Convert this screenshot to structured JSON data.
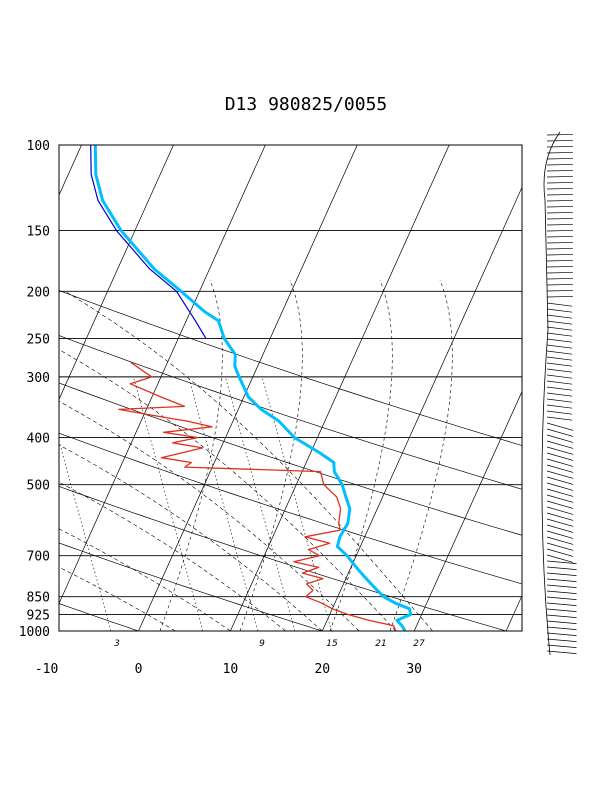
{
  "chart_data": {
    "type": "line",
    "title": "D13 980825/0055",
    "pressure_ticks": [
      100,
      150,
      200,
      250,
      300,
      400,
      500,
      700,
      850,
      925,
      1000
    ],
    "temperature_ticks": [
      -10,
      0,
      10,
      20,
      30
    ],
    "mixing_ratio_labels": [
      3,
      9,
      15,
      21,
      27
    ],
    "xlim": [
      -10,
      40
    ],
    "ylim": [
      1000,
      100
    ],
    "log_pressure": true,
    "series": [
      {
        "color": "#00bfff",
        "points": [
          [
            1000,
            29.0
          ],
          [
            975,
            28.4
          ],
          [
            950,
            27.6
          ],
          [
            925,
            28.8
          ],
          [
            900,
            28.4
          ],
          [
            875,
            26.5
          ],
          [
            850,
            25.0
          ],
          [
            825,
            24.0
          ],
          [
            800,
            23.0
          ],
          [
            775,
            22.0
          ],
          [
            750,
            21.0
          ],
          [
            725,
            20.0
          ],
          [
            700,
            19.0
          ],
          [
            670,
            17.5
          ],
          [
            640,
            17.3
          ],
          [
            600,
            17.5
          ],
          [
            560,
            17.0
          ],
          [
            530,
            16.0
          ],
          [
            500,
            15.0
          ],
          [
            470,
            13.5
          ],
          [
            450,
            13.0
          ],
          [
            430,
            11.0
          ],
          [
            400,
            7.5
          ],
          [
            370,
            5.0
          ],
          [
            350,
            2.5
          ],
          [
            330,
            0.5
          ],
          [
            300,
            -1.5
          ],
          [
            285,
            -2.5
          ],
          [
            270,
            -3.0
          ],
          [
            250,
            -5.0
          ],
          [
            230,
            -6.5
          ],
          [
            220,
            -8.5
          ],
          [
            200,
            -12.0
          ],
          [
            180,
            -16.0
          ],
          [
            150,
            -21.5
          ],
          [
            130,
            -25.0
          ],
          [
            115,
            -27.0
          ],
          [
            100,
            -28.5
          ]
        ]
      },
      {
        "color": "#e03020",
        "points": [
          [
            1000,
            28.0
          ],
          [
            975,
            27.5
          ],
          [
            950,
            24.5
          ],
          [
            925,
            22.0
          ],
          [
            900,
            20.0
          ],
          [
            875,
            18.5
          ],
          [
            850,
            16.5
          ],
          [
            825,
            17.0
          ],
          [
            800,
            16.0
          ],
          [
            780,
            17.5
          ],
          [
            760,
            15.0
          ],
          [
            740,
            16.5
          ],
          [
            720,
            13.5
          ],
          [
            700,
            16.0
          ],
          [
            680,
            14.5
          ],
          [
            660,
            16.5
          ],
          [
            640,
            13.5
          ],
          [
            620,
            17.0
          ],
          [
            600,
            16.5
          ],
          [
            560,
            16.0
          ],
          [
            530,
            15.0
          ],
          [
            500,
            13.0
          ],
          [
            470,
            12.0
          ],
          [
            460,
            -3.0
          ],
          [
            450,
            -2.5
          ],
          [
            440,
            -6.0
          ],
          [
            420,
            -2.0
          ],
          [
            410,
            -5.5
          ],
          [
            400,
            -3.0
          ],
          [
            390,
            -7.0
          ],
          [
            380,
            -2.0
          ],
          [
            370,
            -5.0
          ],
          [
            360,
            -9.0
          ],
          [
            350,
            -13.0
          ],
          [
            345,
            -6.0
          ],
          [
            330,
            -9.0
          ],
          [
            310,
            -13.0
          ],
          [
            300,
            -11.0
          ],
          [
            290,
            -12.5
          ],
          [
            280,
            -14.0
          ]
        ]
      },
      {
        "color": "#0000cc",
        "points": [
          [
            250,
            -7.0
          ],
          [
            230,
            -9.0
          ],
          [
            200,
            -12.5
          ],
          [
            180,
            -16.5
          ],
          [
            150,
            -22.0
          ],
          [
            130,
            -25.5
          ],
          [
            115,
            -27.5
          ],
          [
            100,
            -29.0
          ]
        ]
      }
    ]
  }
}
